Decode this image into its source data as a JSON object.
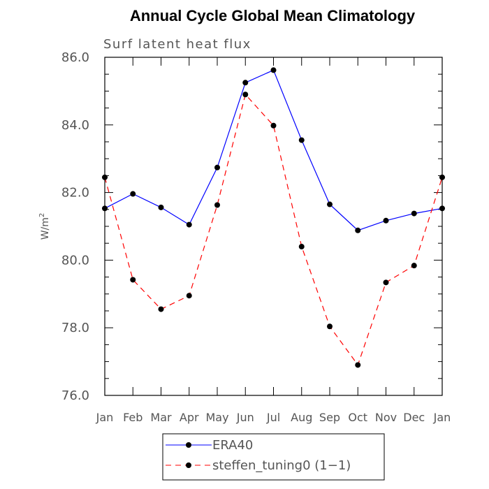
{
  "chart_data": {
    "type": "line",
    "title": "Annual Cycle Global Mean Climatology",
    "subtitle": "Surf latent heat flux",
    "ylabel": "W/m",
    "ylabel_superscript": "2",
    "categories": [
      "Jan",
      "Feb",
      "Mar",
      "Apr",
      "May",
      "Jun",
      "Jul",
      "Aug",
      "Sep",
      "Oct",
      "Nov",
      "Dec",
      "Jan"
    ],
    "ylim": [
      76.0,
      86.0
    ],
    "yticks": [
      "76.0",
      "78.0",
      "80.0",
      "82.0",
      "84.0",
      "86.0"
    ],
    "series": [
      {
        "name": "ERA40",
        "color": "#0000ff",
        "dash": "solid",
        "values": [
          81.53,
          81.96,
          81.56,
          81.05,
          82.74,
          85.25,
          85.62,
          83.55,
          81.65,
          80.88,
          81.17,
          81.38,
          81.53
        ]
      },
      {
        "name": "steffen_tuning0 (1−1)",
        "color": "#ff0000",
        "dash": "dashed",
        "values": [
          82.45,
          79.42,
          78.55,
          78.95,
          81.63,
          84.9,
          83.98,
          80.4,
          78.04,
          76.9,
          79.34,
          79.84,
          82.45
        ]
      }
    ],
    "legend": {
      "position": "bottom-center"
    }
  }
}
